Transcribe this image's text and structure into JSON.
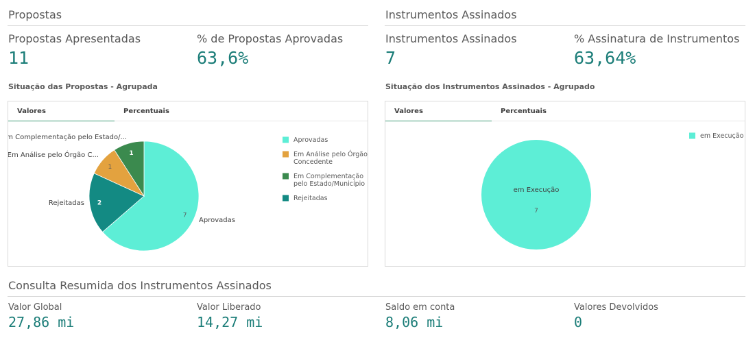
{
  "propostas": {
    "section_title": "Propostas",
    "kpi1": {
      "label": "Propostas Apresentadas",
      "value": "11"
    },
    "kpi2": {
      "label": "% de Propostas Aprovadas",
      "value": "63,6%"
    },
    "chart_title": "Situação das Propostas - Agrupada",
    "tabs": [
      {
        "label": "Valores"
      },
      {
        "label": "Percentuais"
      }
    ]
  },
  "instrumentos": {
    "section_title": "Instrumentos Assinados",
    "kpi1": {
      "label": "Instrumentos Assinados",
      "value": "7"
    },
    "kpi2": {
      "label": "% Assinatura de Instrumentos",
      "value": "63,64%"
    },
    "chart_title": "Situação dos Instrumentos Assinados - Agrupado",
    "tabs": [
      {
        "label": "Valores"
      },
      {
        "label": "Percentuais"
      }
    ]
  },
  "consulta": {
    "section_title": "Consulta Resumida dos Instrumentos Assinados",
    "items": [
      {
        "label": "Valor Global",
        "value": "27,86 mi"
      },
      {
        "label": "Valor Liberado",
        "value": "14,27 mi"
      },
      {
        "label": "Saldo em conta",
        "value": "8,06 mi"
      },
      {
        "label": "Valores Devolvidos",
        "value": "0"
      }
    ]
  },
  "chart_data": [
    {
      "type": "pie",
      "title": "Situação das Propostas - Agrupada",
      "legend_position": "right",
      "slices": [
        {
          "name": "Aprovadas",
          "label": "Aprovadas",
          "value": 7,
          "color": "#5deed6",
          "value_color": "#595959"
        },
        {
          "name": "Rejeitadas",
          "label": "Rejeitadas",
          "value": 2,
          "color": "#138a83",
          "value_color": "#ffffff"
        },
        {
          "name": "Em Análise pelo Órgão Concedente",
          "label": "Em Análise pelo Órgão C...",
          "value": 1,
          "color": "#e3a23f",
          "value_color": "#595959"
        },
        {
          "name": "Em Complementação pelo Estado/Município",
          "label": "Em Complementação pelo Estado/...",
          "value": 1,
          "color": "#3b8a4e",
          "value_color": "#ffffff"
        }
      ],
      "legend": [
        {
          "lines": [
            "Aprovadas"
          ],
          "color": "#5deed6"
        },
        {
          "lines": [
            "Em Análise pelo Órgão",
            "Concedente"
          ],
          "color": "#e3a23f"
        },
        {
          "lines": [
            "Em Complementação",
            "pelo Estado/Município"
          ],
          "color": "#3b8a4e"
        },
        {
          "lines": [
            "Rejeitadas"
          ],
          "color": "#138a83"
        }
      ]
    },
    {
      "type": "pie",
      "title": "Situação dos Instrumentos Assinados - Agrupado",
      "legend_position": "top-right",
      "slices": [
        {
          "name": "em Execução",
          "label": "em Execução",
          "value": 7,
          "color": "#5deed6",
          "value_color": "#595959"
        }
      ],
      "legend": [
        {
          "lines": [
            "em Execução"
          ],
          "color": "#5deed6"
        }
      ]
    }
  ]
}
